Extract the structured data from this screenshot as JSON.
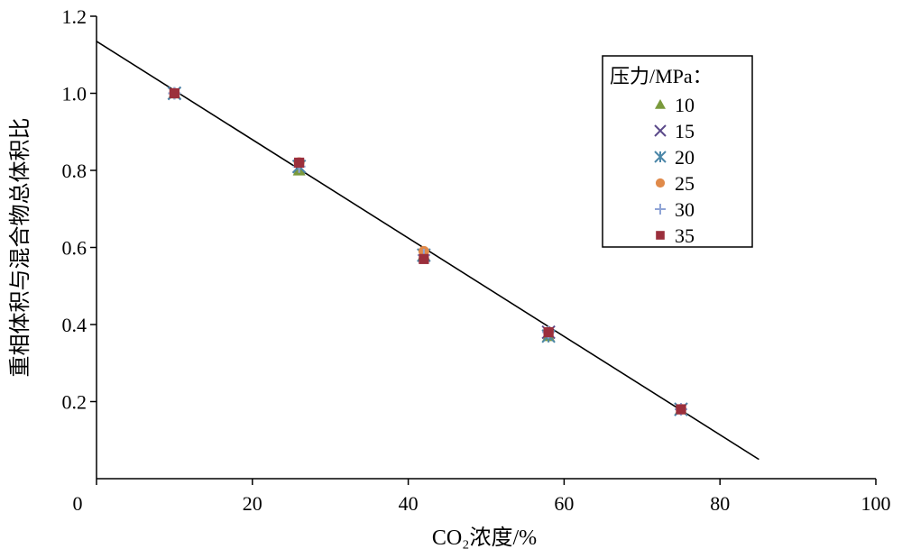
{
  "chart_data": {
    "type": "scatter",
    "xlabel": "CO₂浓度/%",
    "ylabel": "重相体积与混合物总体积比",
    "xlim": [
      0,
      100
    ],
    "ylim": [
      0,
      1.2
    ],
    "x_ticks": [
      "0",
      "20",
      "40",
      "60",
      "80",
      "100"
    ],
    "y_ticks": [
      "0.2",
      "0.4",
      "0.6",
      "0.8",
      "1.0",
      "1.2"
    ],
    "grid": false,
    "legend": {
      "title": "压力/MPa：",
      "placement": "top-right"
    },
    "series": [
      {
        "name": "10",
        "marker": "triangle",
        "color": "#7a9a3c",
        "x": [
          10,
          26,
          42,
          58,
          75
        ],
        "y": [
          1.0,
          0.8,
          0.58,
          0.37,
          0.18
        ]
      },
      {
        "name": "15",
        "marker": "x",
        "color": "#5b4a8a",
        "x": [
          10,
          26,
          42,
          58,
          75
        ],
        "y": [
          1.0,
          0.81,
          0.58,
          0.38,
          0.18
        ]
      },
      {
        "name": "20",
        "marker": "star",
        "color": "#4b87a8",
        "x": [
          10,
          26,
          42,
          58,
          75
        ],
        "y": [
          1.0,
          0.81,
          0.58,
          0.37,
          0.18
        ]
      },
      {
        "name": "25",
        "marker": "circle",
        "color": "#e08a4a",
        "x": [
          10,
          26,
          42,
          58,
          75
        ],
        "y": [
          1.0,
          0.82,
          0.59,
          0.38,
          0.18
        ]
      },
      {
        "name": "30",
        "marker": "plus",
        "color": "#8fa4d6",
        "x": [
          10,
          26,
          42,
          58,
          75
        ],
        "y": [
          1.0,
          0.81,
          0.58,
          0.38,
          0.18
        ]
      },
      {
        "name": "35",
        "marker": "square",
        "color": "#9b2f3c",
        "x": [
          10,
          26,
          42,
          58,
          75
        ],
        "y": [
          1.0,
          0.82,
          0.57,
          0.38,
          0.18
        ]
      }
    ],
    "trend_line": {
      "x": [
        0,
        85
      ],
      "y": [
        1.135,
        0.05
      ]
    }
  }
}
